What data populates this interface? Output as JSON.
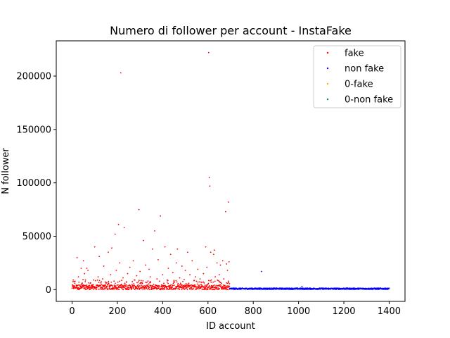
{
  "chart_data": {
    "type": "scatter",
    "title": "Numero di follower per account - InstaFake",
    "xlabel": "ID account",
    "ylabel": "N follower",
    "xlim": [
      -70,
      1470
    ],
    "ylim": [
      -11000,
      233000
    ],
    "xticks": [
      0,
      200,
      400,
      600,
      800,
      1000,
      1200,
      1400
    ],
    "yticks": [
      0,
      50000,
      100000,
      150000,
      200000
    ],
    "grid": false,
    "legend_position": "top-right",
    "series": [
      {
        "name": "fake",
        "color": "#ff0000",
        "x_range": [
          0,
          695
        ],
        "points": [
          [
            5,
            9000
          ],
          [
            8,
            3000
          ],
          [
            12,
            6000
          ],
          [
            18,
            2500
          ],
          [
            22,
            30000
          ],
          [
            25,
            4000
          ],
          [
            28,
            12000
          ],
          [
            30,
            7000
          ],
          [
            35,
            1000
          ],
          [
            40,
            20000
          ],
          [
            42,
            2000
          ],
          [
            48,
            9500
          ],
          [
            50,
            27000
          ],
          [
            55,
            15000
          ],
          [
            58,
            500
          ],
          [
            62,
            3000
          ],
          [
            65,
            20000
          ],
          [
            70,
            18000
          ],
          [
            75,
            700
          ],
          [
            80,
            6000
          ],
          [
            85,
            1500
          ],
          [
            90,
            2000
          ],
          [
            95,
            9000
          ],
          [
            100,
            40000
          ],
          [
            105,
            300
          ],
          [
            110,
            2500
          ],
          [
            115,
            12000
          ],
          [
            120,
            31000
          ],
          [
            125,
            800
          ],
          [
            130,
            5000
          ],
          [
            135,
            10000
          ],
          [
            140,
            22000
          ],
          [
            145,
            1200
          ],
          [
            150,
            6500
          ],
          [
            155,
            3000
          ],
          [
            160,
            35000
          ],
          [
            165,
            1000
          ],
          [
            170,
            14000
          ],
          [
            175,
            39000
          ],
          [
            180,
            2000
          ],
          [
            185,
            8000
          ],
          [
            190,
            52000
          ],
          [
            195,
            18000
          ],
          [
            200,
            1500
          ],
          [
            205,
            61000
          ],
          [
            210,
            25000
          ],
          [
            215,
            203000
          ],
          [
            220,
            3000
          ],
          [
            225,
            11000
          ],
          [
            230,
            58000
          ],
          [
            235,
            4000
          ],
          [
            240,
            7000
          ],
          [
            245,
            15000
          ],
          [
            250,
            2000
          ],
          [
            255,
            21000
          ],
          [
            260,
            1000
          ],
          [
            265,
            5000
          ],
          [
            270,
            27000
          ],
          [
            275,
            9000
          ],
          [
            280,
            3000
          ],
          [
            285,
            13000
          ],
          [
            290,
            800
          ],
          [
            295,
            75000
          ],
          [
            300,
            17000
          ],
          [
            305,
            2500
          ],
          [
            310,
            6000
          ],
          [
            315,
            46000
          ],
          [
            320,
            1000
          ],
          [
            325,
            23000
          ],
          [
            330,
            4000
          ],
          [
            335,
            8000
          ],
          [
            340,
            19000
          ],
          [
            345,
            12000
          ],
          [
            350,
            1500
          ],
          [
            355,
            38000
          ],
          [
            360,
            5000
          ],
          [
            365,
            55000
          ],
          [
            370,
            2000
          ],
          [
            375,
            10000
          ],
          [
            380,
            28000
          ],
          [
            385,
            3500
          ],
          [
            390,
            69000
          ],
          [
            395,
            700
          ],
          [
            400,
            14000
          ],
          [
            405,
            6000
          ],
          [
            410,
            40000
          ],
          [
            415,
            2500
          ],
          [
            420,
            9000
          ],
          [
            425,
            20000
          ],
          [
            430,
            1200
          ],
          [
            435,
            33000
          ],
          [
            440,
            4500
          ],
          [
            445,
            16000
          ],
          [
            450,
            7500
          ],
          [
            455,
            1000
          ],
          [
            460,
            25000
          ],
          [
            465,
            38000
          ],
          [
            470,
            3000
          ],
          [
            475,
            11000
          ],
          [
            480,
            5000
          ],
          [
            485,
            22000
          ],
          [
            490,
            800
          ],
          [
            495,
            9500
          ],
          [
            500,
            18000
          ],
          [
            505,
            2000
          ],
          [
            510,
            35000
          ],
          [
            515,
            6000
          ],
          [
            520,
            14000
          ],
          [
            525,
            1500
          ],
          [
            530,
            27000
          ],
          [
            535,
            4000
          ],
          [
            540,
            8500
          ],
          [
            545,
            12000
          ],
          [
            550,
            600
          ],
          [
            555,
            19000
          ],
          [
            560,
            3000
          ],
          [
            565,
            10000
          ],
          [
            570,
            7000
          ],
          [
            575,
            2500
          ],
          [
            580,
            15000
          ],
          [
            585,
            1000
          ],
          [
            590,
            40000
          ],
          [
            595,
            21000
          ],
          [
            600,
            5000
          ],
          [
            603,
            222000
          ],
          [
            606,
            105000
          ],
          [
            608,
            97000
          ],
          [
            612,
            35000
          ],
          [
            615,
            9000
          ],
          [
            620,
            2000
          ],
          [
            625,
            33000
          ],
          [
            628,
            37000
          ],
          [
            632,
            12000
          ],
          [
            636,
            4000
          ],
          [
            640,
            25000
          ],
          [
            645,
            1500
          ],
          [
            650,
            14000
          ],
          [
            655,
            23000
          ],
          [
            660,
            6000
          ],
          [
            665,
            27000
          ],
          [
            670,
            10000
          ],
          [
            675,
            2000
          ],
          [
            678,
            73000
          ],
          [
            682,
            24000
          ],
          [
            686,
            18000
          ],
          [
            690,
            82000
          ],
          [
            693,
            26000
          ],
          [
            695,
            3000
          ]
        ]
      },
      {
        "name": "non fake",
        "color": "#0000ff",
        "x_range": [
          696,
          1400
        ],
        "points": [
          [
            836,
            17000
          ],
          [
            1015,
            3000
          ],
          [
            1200,
            1500
          ],
          [
            1260,
            1200
          ],
          [
            1350,
            900
          ]
        ]
      },
      {
        "name": "0-fake",
        "color": "#ffa500",
        "points": []
      },
      {
        "name": "0-non fake",
        "color": "#008080",
        "points": []
      }
    ]
  }
}
